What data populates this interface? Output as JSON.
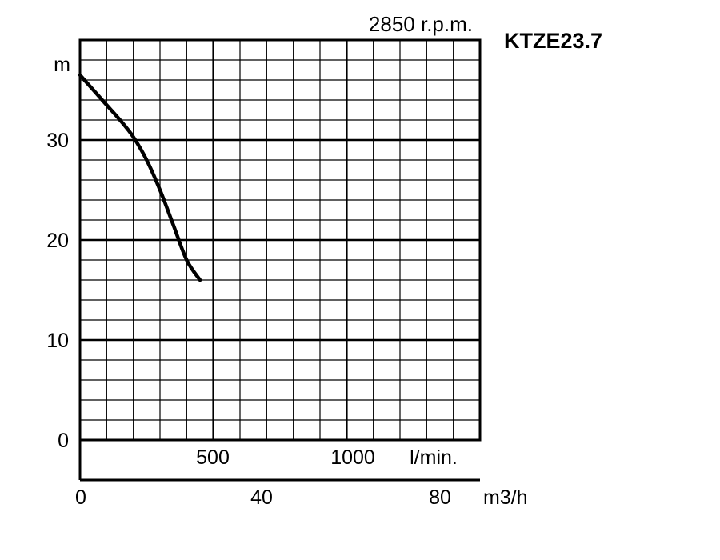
{
  "chart_data": {
    "type": "line",
    "title": "KTZE23.7",
    "subtitle": "2850 r.p.m.",
    "ylabel": "m",
    "ylim": [
      0,
      40
    ],
    "xlim_lmin": [
      0,
      1500
    ],
    "y_ticks": [
      "0",
      "10",
      "20",
      "30"
    ],
    "x_ticks_lmin": [
      "500",
      "1000"
    ],
    "x_unit_lmin": "l/min.",
    "x_ticks_m3h": [
      "0",
      "40",
      "80"
    ],
    "x_unit_m3h": "m3/h",
    "grid": true,
    "series": [
      {
        "name": "",
        "x": [
          0,
          50,
          100,
          150,
          200,
          250,
          300,
          350,
          400,
          450
        ],
        "y": [
          36.5,
          35,
          33.5,
          32,
          30.3,
          28,
          25,
          21.5,
          18,
          16
        ]
      }
    ]
  }
}
